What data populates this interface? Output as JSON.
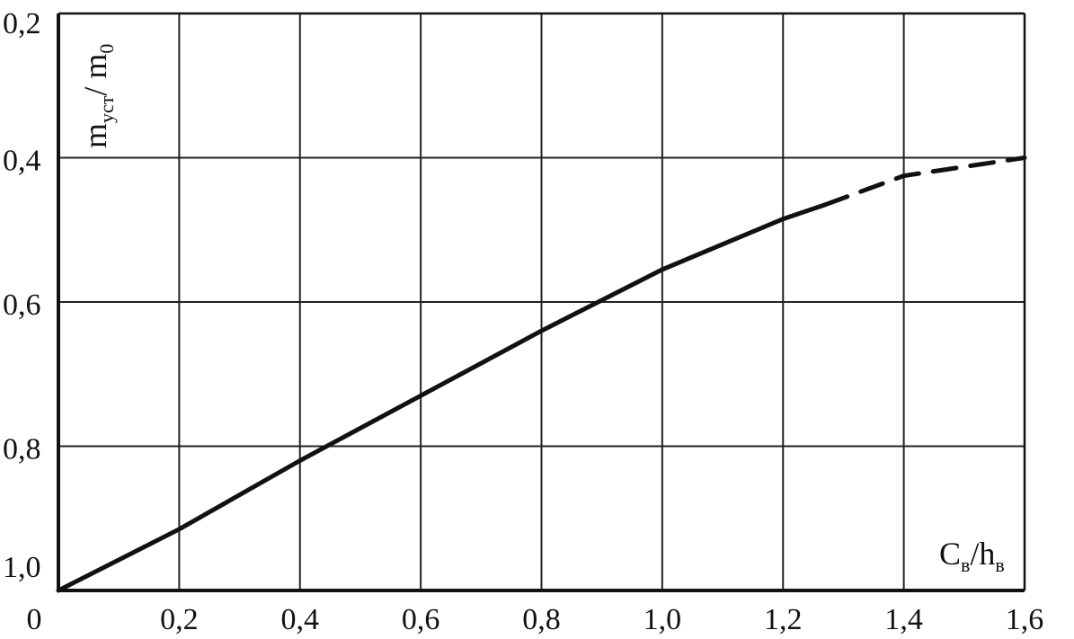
{
  "chart_data": {
    "type": "line",
    "title": "",
    "xlabel": "C",
    "xlabel_sub": "в",
    "xlabel_sep": "/h",
    "xlabel_sub2": "в",
    "ylabel": "m",
    "ylabel_sub": "уст",
    "ylabel_sep": "/ m",
    "ylabel_sub2": "0",
    "xlim": [
      0,
      1.6
    ],
    "ylim": [
      1.0,
      0.2
    ],
    "y_inverted": true,
    "grid": true,
    "x_ticks": [
      "0",
      "0,2",
      "0,4",
      "0,6",
      "0,8",
      "1,0",
      "1,2",
      "1,4",
      "1,6"
    ],
    "y_ticks": [
      "0,2",
      "0,4",
      "0,6",
      "0,8",
      "1,0"
    ],
    "series": [
      {
        "style": "solid",
        "color": "#111111",
        "x": [
          0.0,
          0.2,
          0.4,
          0.6,
          0.8,
          1.0,
          1.2,
          1.27
        ],
        "y": [
          1.0,
          0.915,
          0.82,
          0.73,
          0.64,
          0.555,
          0.485,
          0.465
        ]
      },
      {
        "style": "dashed",
        "color": "#111111",
        "x": [
          1.27,
          1.4,
          1.6
        ],
        "y": [
          0.465,
          0.425,
          0.4
        ]
      }
    ]
  }
}
